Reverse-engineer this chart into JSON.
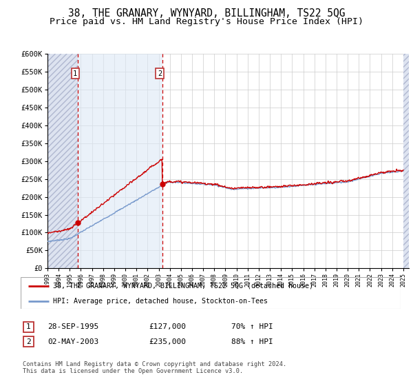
{
  "title": "38, THE GRANARY, WYNYARD, BILLINGHAM, TS22 5QG",
  "subtitle": "Price paid vs. HM Land Registry's House Price Index (HPI)",
  "title_fontsize": 10.5,
  "subtitle_fontsize": 9.5,
  "ylabel_values": [
    "£0",
    "£50K",
    "£100K",
    "£150K",
    "£200K",
    "£250K",
    "£300K",
    "£350K",
    "£400K",
    "£450K",
    "£500K",
    "£550K",
    "£600K"
  ],
  "ylim": [
    0,
    600000
  ],
  "yticks": [
    0,
    50000,
    100000,
    150000,
    200000,
    250000,
    300000,
    350000,
    400000,
    450000,
    500000,
    550000,
    600000
  ],
  "xlim_start": 1993.0,
  "xlim_end": 2025.5,
  "sale1_date": 1995.74,
  "sale1_price": 127000,
  "sale2_date": 2003.33,
  "sale2_price": 235000,
  "legend_line1": "38, THE GRANARY, WYNYARD, BILLINGHAM, TS22 5QG (detached house)",
  "legend_line2": "HPI: Average price, detached house, Stockton-on-Tees",
  "table_row1": [
    "1",
    "28-SEP-1995",
    "£127,000",
    "70% ↑ HPI"
  ],
  "table_row2": [
    "2",
    "02-MAY-2003",
    "£235,000",
    "88% ↑ HPI"
  ],
  "footnote": "Contains HM Land Registry data © Crown copyright and database right 2024.\nThis data is licensed under the Open Government Licence v3.0.",
  "red_color": "#cc0000",
  "blue_color": "#7799cc",
  "grid_color": "#cccccc",
  "hatch_left_end": 1993.0,
  "hatch_right_start": 2025.0
}
